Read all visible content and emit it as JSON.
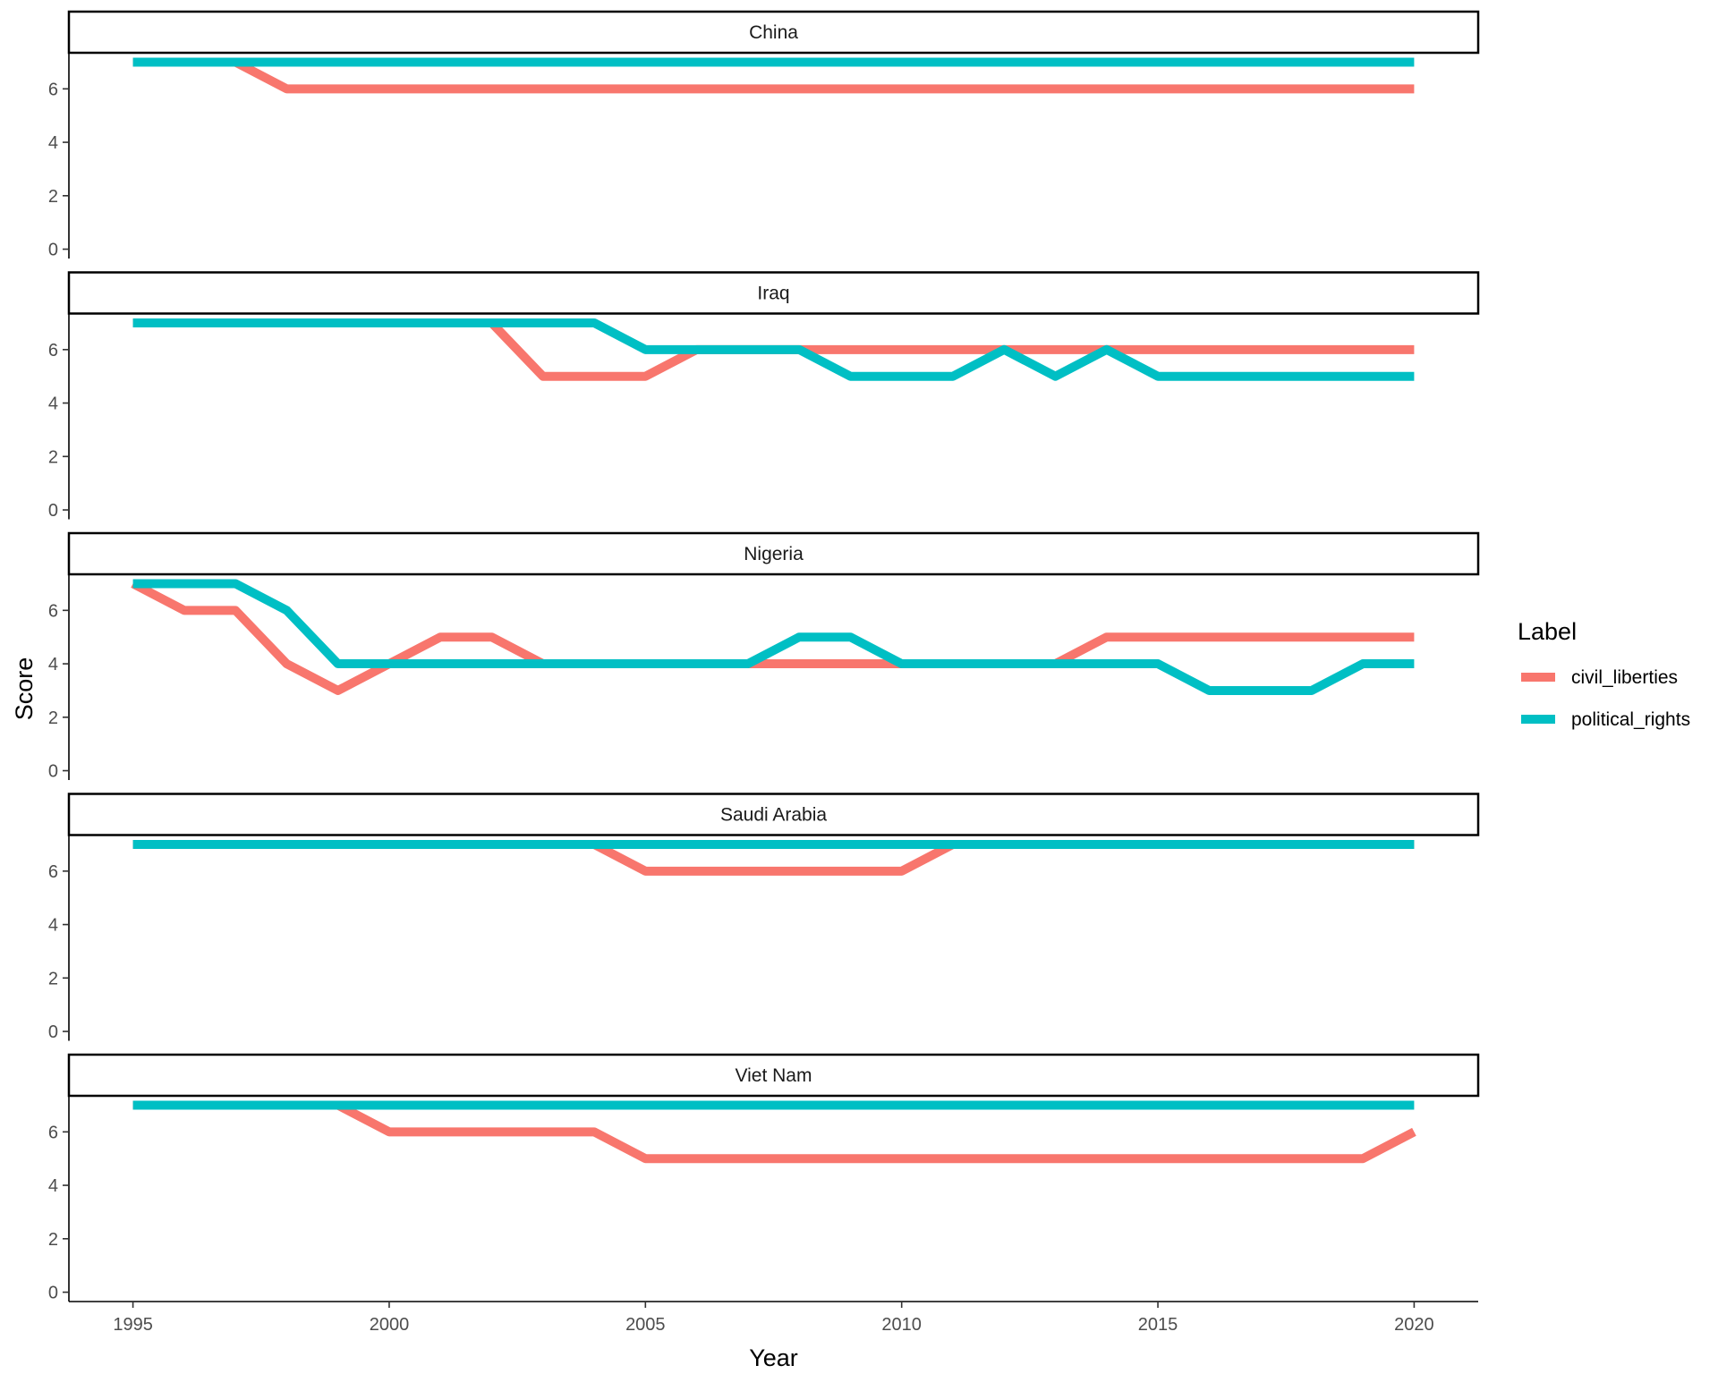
{
  "chart_data": {
    "type": "line",
    "xlabel": "Year",
    "ylabel": "Score",
    "xlim": [
      1993.75,
      2021.25
    ],
    "ylim": [
      -0.35,
      7.35
    ],
    "x_ticks": [
      1995,
      2000,
      2005,
      2010,
      2015,
      2020
    ],
    "y_ticks": [
      0,
      2,
      4,
      6
    ],
    "grid": false,
    "legend": {
      "title": "Label",
      "position": "right",
      "entries": [
        {
          "name": "civil_liberties",
          "color": "#F8766D"
        },
        {
          "name": "political_rights",
          "color": "#00BFC4"
        }
      ]
    },
    "x": [
      1995,
      1996,
      1997,
      1998,
      1999,
      2000,
      2001,
      2002,
      2003,
      2004,
      2005,
      2006,
      2007,
      2008,
      2009,
      2010,
      2011,
      2012,
      2013,
      2014,
      2015,
      2016,
      2017,
      2018,
      2019,
      2020
    ],
    "facets": [
      {
        "name": "China",
        "series": [
          {
            "name": "civil_liberties",
            "values": [
              7,
              7,
              7,
              6,
              6,
              6,
              6,
              6,
              6,
              6,
              6,
              6,
              6,
              6,
              6,
              6,
              6,
              6,
              6,
              6,
              6,
              6,
              6,
              6,
              6,
              6
            ]
          },
          {
            "name": "political_rights",
            "values": [
              7,
              7,
              7,
              7,
              7,
              7,
              7,
              7,
              7,
              7,
              7,
              7,
              7,
              7,
              7,
              7,
              7,
              7,
              7,
              7,
              7,
              7,
              7,
              7,
              7,
              7
            ]
          }
        ]
      },
      {
        "name": "Iraq",
        "series": [
          {
            "name": "civil_liberties",
            "values": [
              7,
              7,
              7,
              7,
              7,
              7,
              7,
              7,
              5,
              5,
              5,
              6,
              6,
              6,
              6,
              6,
              6,
              6,
              6,
              6,
              6,
              6,
              6,
              6,
              6,
              6
            ]
          },
          {
            "name": "political_rights",
            "values": [
              7,
              7,
              7,
              7,
              7,
              7,
              7,
              7,
              7,
              7,
              6,
              6,
              6,
              6,
              5,
              5,
              5,
              6,
              5,
              6,
              5,
              5,
              5,
              5,
              5,
              5
            ]
          }
        ]
      },
      {
        "name": "Nigeria",
        "series": [
          {
            "name": "civil_liberties",
            "values": [
              7,
              6,
              6,
              4,
              3,
              4,
              5,
              5,
              4,
              4,
              4,
              4,
              4,
              4,
              4,
              4,
              4,
              4,
              4,
              5,
              5,
              5,
              5,
              5,
              5,
              5
            ]
          },
          {
            "name": "political_rights",
            "values": [
              7,
              7,
              7,
              6,
              4,
              4,
              4,
              4,
              4,
              4,
              4,
              4,
              4,
              5,
              5,
              4,
              4,
              4,
              4,
              4,
              4,
              3,
              3,
              3,
              4,
              4
            ]
          }
        ]
      },
      {
        "name": "Saudi Arabia",
        "series": [
          {
            "name": "civil_liberties",
            "values": [
              7,
              7,
              7,
              7,
              7,
              7,
              7,
              7,
              7,
              7,
              6,
              6,
              6,
              6,
              6,
              6,
              7,
              7,
              7,
              7,
              7,
              7,
              7,
              7,
              7,
              7
            ]
          },
          {
            "name": "political_rights",
            "values": [
              7,
              7,
              7,
              7,
              7,
              7,
              7,
              7,
              7,
              7,
              7,
              7,
              7,
              7,
              7,
              7,
              7,
              7,
              7,
              7,
              7,
              7,
              7,
              7,
              7,
              7
            ]
          }
        ]
      },
      {
        "name": "Viet Nam",
        "series": [
          {
            "name": "civil_liberties",
            "values": [
              7,
              7,
              7,
              7,
              7,
              6,
              6,
              6,
              6,
              6,
              5,
              5,
              5,
              5,
              5,
              5,
              5,
              5,
              5,
              5,
              5,
              5,
              5,
              5,
              5,
              6
            ]
          },
          {
            "name": "political_rights",
            "values": [
              7,
              7,
              7,
              7,
              7,
              7,
              7,
              7,
              7,
              7,
              7,
              7,
              7,
              7,
              7,
              7,
              7,
              7,
              7,
              7,
              7,
              7,
              7,
              7,
              7,
              7
            ]
          }
        ]
      }
    ]
  }
}
